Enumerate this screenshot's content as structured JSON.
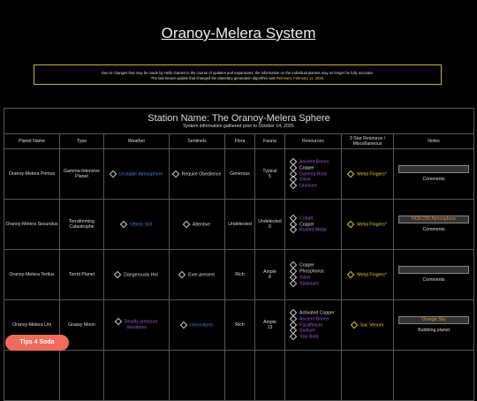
{
  "title": "Oranoy-Melera System",
  "notice": {
    "line1": "Due to changes that may be made by Hello Games in the course of updates and expansions, the information on the individual planets may no longer be fully accurate.",
    "line2": "The last known update that changed the planetary generation algorithm was ",
    "update": "Remnant, February 11, 2025."
  },
  "table": {
    "station": "Station Name: The Oranoy-Melera Sphere",
    "subtitle": "System information gathered prior to October 14, 2025.",
    "columns": [
      "Planet Name",
      "Type",
      "Weather",
      "Sentinels",
      "Flora",
      "Fauna",
      "Resources",
      "3 Star Resource / Miscellaneous",
      "Notes"
    ],
    "rows": [
      {
        "name": "Oranoy-Melera Primus",
        "type": "Gamma-Intensive Planet",
        "weather": {
          "text": "Unstable Atmosphere",
          "color": "#4a7bd0"
        },
        "sentinels": {
          "text": "Require Obedience",
          "color": "#dddddd"
        },
        "flora": "Generous",
        "fauna": [
          "Typical",
          "5"
        ],
        "resources": [
          {
            "text": "Ancient Bones",
            "color": "#9b59d0"
          },
          {
            "text": "Copper",
            "color": "#dddddd"
          },
          {
            "text": "Gamma Root",
            "color": "#9b59d0"
          },
          {
            "text": "Silver",
            "color": "#9b59d0"
          },
          {
            "text": "Uranium",
            "color": "#9b59d0"
          }
        ],
        "misc": "Metal Fingers*",
        "notes": {
          "label": null,
          "text": "Comments"
        }
      },
      {
        "name": "Oranoy-Melera Secundus",
        "type": "Terraforming Catastrophe",
        "weather": {
          "text": "Utterly Still",
          "color": "#4a7bd0"
        },
        "sentinels": {
          "text": "Attentive",
          "color": "#dddddd"
        },
        "flora": "Undetected",
        "fauna": [
          "Undetected",
          "0"
        ],
        "resources": [
          {
            "text": "Cobalt",
            "color": "#9b59d0"
          },
          {
            "text": "Copper",
            "color": "#dddddd"
          },
          {
            "text": "Rusted Metal",
            "color": "#9b59d0"
          }
        ],
        "misc": "Metal Fingers*",
        "notes": {
          "label": "NO/LOW Atmosphere",
          "text": "Comments"
        }
      },
      {
        "name": "Oranoy-Melera Tertius",
        "type": "Torrid Planet",
        "weather": {
          "text": "Dangerously Hot",
          "color": "#dddddd"
        },
        "sentinels": {
          "text": "Ever-present",
          "color": "#dddddd"
        },
        "flora": "Rich",
        "fauna": [
          "Ample",
          "8"
        ],
        "resources": [
          {
            "text": "Copper",
            "color": "#dddddd"
          },
          {
            "text": "Phosphorus",
            "color": "#dddddd"
          },
          {
            "text": "Silver",
            "color": "#9b59d0"
          },
          {
            "text": "Solanium",
            "color": "#9b59d0"
          }
        ],
        "misc": "Metal Fingers*",
        "notes": {
          "label": null,
          "text": "Comments"
        }
      },
      {
        "name": "Oranoy-Melera Uni",
        "type": "Grassy Moon",
        "weather": {
          "text": "Deadly pressure Variations",
          "color": "#9b59d0"
        },
        "sentinels": {
          "text": "Intermittent",
          "color": "#4a7bd0"
        },
        "flora": "Rich",
        "fauna": [
          "Ample",
          "13"
        ],
        "resources": [
          {
            "text": "Activated Copper",
            "color": "#dddddd"
          },
          {
            "text": "Ancient Bones",
            "color": "#9b59d0"
          },
          {
            "text": "Paraffinium",
            "color": "#9b59d0"
          },
          {
            "text": "Sodium",
            "color": "#9b59d0"
          },
          {
            "text": "Star Bulb",
            "color": "#9b59d0"
          }
        ],
        "misc": "Sac Venom",
        "notes": {
          "label": "Orange Sky",
          "text": "Bubbling planet"
        }
      }
    ]
  },
  "tip": "Tips 4 Soda"
}
